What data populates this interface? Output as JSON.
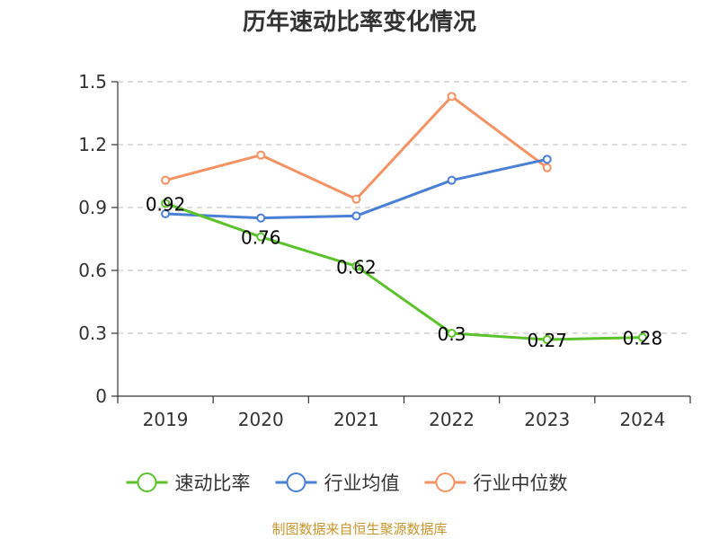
{
  "title": "历年速动比率变化情况",
  "source": "制图数据来自恒生聚源数据库",
  "chart_data": {
    "type": "line",
    "title": "历年速动比率变化情况",
    "categories": [
      "2019",
      "2020",
      "2021",
      "2022",
      "2023",
      "2024"
    ],
    "ylim": [
      0,
      1.5
    ],
    "yticks": [
      "0",
      "0.3",
      "0.6",
      "0.9",
      "1.2",
      "1.5"
    ],
    "ytick_values": [
      0,
      0.3,
      0.6,
      0.9,
      1.2,
      1.5
    ],
    "grid": true,
    "legend_position": "bottom",
    "series": [
      {
        "name": "速动比率",
        "color": "#5bc22b",
        "values": [
          0.92,
          0.76,
          0.62,
          0.3,
          0.27,
          0.28
        ],
        "labels": [
          "0.92",
          "0.76",
          "0.62",
          "0.3",
          "0.27",
          "0.28"
        ],
        "show_labels": true
      },
      {
        "name": "行业均值",
        "color": "#4a7fd6",
        "values": [
          0.87,
          0.85,
          0.86,
          1.03,
          1.13,
          null
        ],
        "show_labels": false
      },
      {
        "name": "行业中位数",
        "color": "#f59263",
        "values": [
          1.03,
          1.15,
          0.94,
          1.43,
          1.09,
          null
        ],
        "show_labels": false
      }
    ]
  }
}
